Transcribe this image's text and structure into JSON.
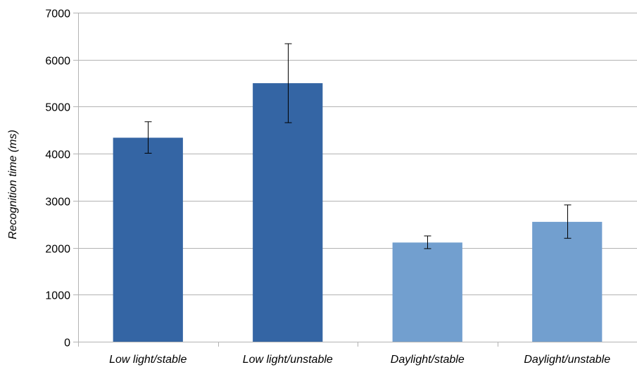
{
  "chart_data": {
    "type": "bar",
    "title": "",
    "xlabel": "",
    "ylabel": "Recognition time (ms)",
    "ylim": [
      0,
      7000
    ],
    "yticks": [
      0,
      1000,
      2000,
      3000,
      4000,
      5000,
      6000,
      7000
    ],
    "grid": true,
    "legend": "none",
    "categories": [
      "Low light/stable",
      "Low light/unstable",
      "Daylight/stable",
      "Daylight/unstable"
    ],
    "values": [
      4340,
      5500,
      2110,
      2550
    ],
    "error_low": [
      4010,
      4660,
      1980,
      2200
    ],
    "error_high": [
      4680,
      6340,
      2250,
      2910
    ],
    "bar_colors": [
      "#3465a4",
      "#3465a4",
      "#729fcf",
      "#729fcf"
    ],
    "grid_color": "#b3b3b3",
    "axis_color": "#b3b3b3"
  }
}
